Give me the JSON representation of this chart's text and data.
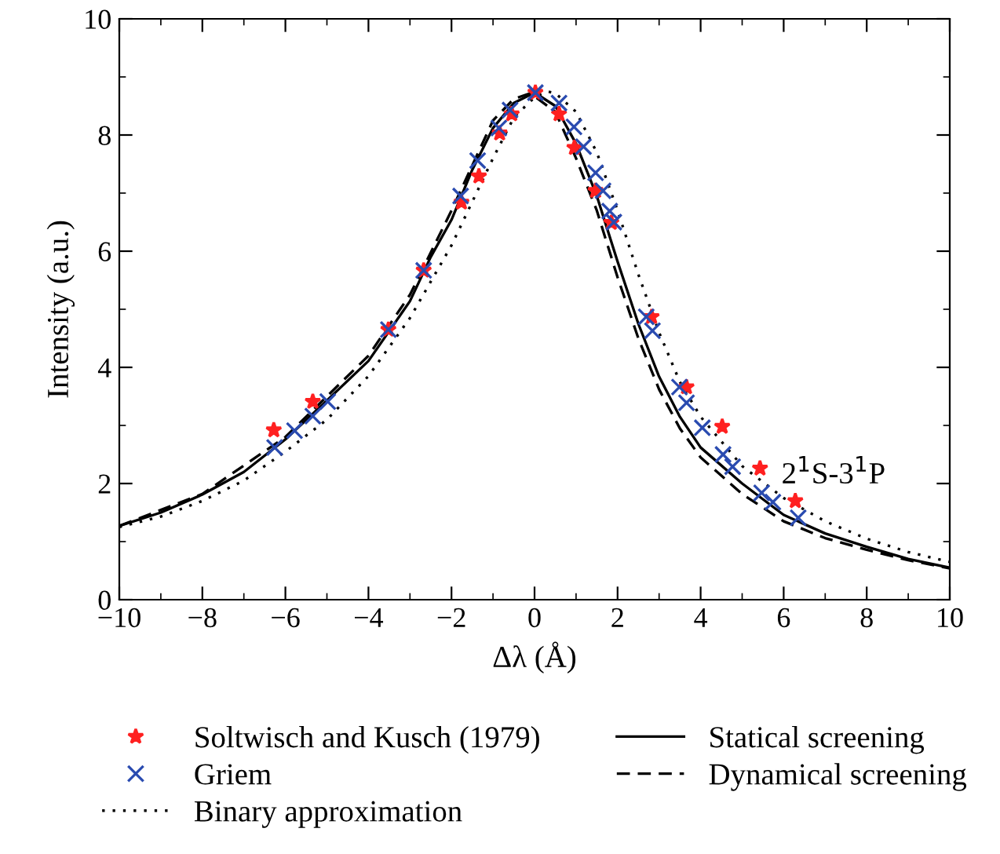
{
  "chart_data": {
    "type": "line",
    "xlabel": "Δλ (Å)",
    "ylabel": "Intensity (a.u.)",
    "xlim": [
      -10,
      10
    ],
    "ylim": [
      0,
      10
    ],
    "xticks": [
      {
        "value": -10,
        "label": "−10"
      },
      {
        "value": -8,
        "label": "−8"
      },
      {
        "value": -6,
        "label": "−6"
      },
      {
        "value": -4,
        "label": "−4"
      },
      {
        "value": -2,
        "label": "−2"
      },
      0,
      2,
      4,
      6,
      8,
      10
    ],
    "yticks": [
      0,
      2,
      4,
      6,
      8,
      10
    ],
    "grid": false,
    "legend": "bottom",
    "annotations": [
      "2$^{1}$S-3$^{1}$P"
    ],
    "series": [
      {
        "name": "Soltwisch and Kusch (1979)",
        "type": "scatter",
        "marker": "star",
        "color": "#ff2020",
        "x": [
          -6.28,
          -5.34,
          -3.52,
          -2.67,
          -1.76,
          -1.34,
          -0.84,
          -0.55,
          0.02,
          0.59,
          0.96,
          1.47,
          1.85,
          2.82,
          3.66,
          4.52,
          5.43,
          6.28
        ],
        "values": [
          2.92,
          3.41,
          4.65,
          5.67,
          6.84,
          7.29,
          8.03,
          8.36,
          8.73,
          8.36,
          7.78,
          7.04,
          6.49,
          4.87,
          3.66,
          2.98,
          2.26,
          1.7
        ]
      },
      {
        "name": "Griem",
        "type": "scatter",
        "marker": "cross",
        "color": "#2a4bb0",
        "x": [
          -6.26,
          -5.78,
          -5.34,
          -4.98,
          -3.52,
          -2.67,
          -1.78,
          -1.37,
          -0.86,
          -0.59,
          0.02,
          0.59,
          0.95,
          1.18,
          1.47,
          1.65,
          1.81,
          1.91,
          2.69,
          2.84,
          3.49,
          3.66,
          4.04,
          4.54,
          4.77,
          5.47,
          5.74,
          6.35
        ],
        "values": [
          2.62,
          2.91,
          3.16,
          3.41,
          4.65,
          5.67,
          6.95,
          7.56,
          8.12,
          8.43,
          8.73,
          8.55,
          8.14,
          7.8,
          7.35,
          7.04,
          6.69,
          6.5,
          4.87,
          4.63,
          3.66,
          3.39,
          2.96,
          2.5,
          2.29,
          1.84,
          1.68,
          1.41
        ]
      },
      {
        "name": "Binary approximation",
        "line_style": "dotted",
        "color": "#000000",
        "x": [
          -10,
          -9,
          -8,
          -7,
          -6,
          -5,
          -4,
          -3,
          -2,
          -1,
          -0.5,
          0,
          0.3,
          0.5,
          1,
          1.5,
          2,
          2.5,
          3,
          3.5,
          4,
          5,
          6,
          7,
          8,
          9,
          10
        ],
        "values": [
          1.25,
          1.43,
          1.7,
          2.05,
          2.55,
          3.1,
          3.85,
          4.85,
          6.1,
          7.6,
          8.3,
          8.65,
          8.75,
          8.72,
          8.4,
          7.7,
          6.7,
          5.6,
          4.6,
          3.75,
          3.15,
          2.3,
          1.75,
          1.35,
          1.05,
          0.82,
          0.65
        ]
      },
      {
        "name": "Statical screening",
        "line_style": "solid",
        "color": "#000000",
        "x": [
          -10,
          -9,
          -8,
          -7,
          -6,
          -5,
          -4,
          -3,
          -2.5,
          -2,
          -1.5,
          -1,
          -0.5,
          0,
          0.5,
          1,
          1.5,
          2,
          2.5,
          3,
          3.5,
          4,
          5,
          6,
          7,
          8,
          9,
          10
        ],
        "values": [
          1.27,
          1.5,
          1.81,
          2.2,
          2.76,
          3.43,
          4.11,
          5.14,
          5.9,
          6.54,
          7.4,
          8.12,
          8.55,
          8.73,
          8.5,
          7.85,
          6.95,
          5.82,
          4.75,
          3.84,
          3.15,
          2.62,
          2.0,
          1.46,
          1.14,
          0.91,
          0.7,
          0.55
        ]
      },
      {
        "name": "Dynamical screening",
        "line_style": "dashed",
        "color": "#000000",
        "x": [
          -10,
          -8,
          -6,
          -4,
          -3,
          -2,
          -1,
          -0.5,
          -0.1,
          0.5,
          1,
          1.5,
          2,
          2.5,
          3,
          3.5,
          4,
          5,
          6,
          7,
          8,
          9,
          10
        ],
        "values": [
          1.27,
          1.82,
          2.8,
          4.2,
          5.25,
          6.7,
          8.25,
          8.62,
          8.72,
          8.4,
          7.6,
          6.7,
          5.55,
          4.5,
          3.62,
          2.95,
          2.45,
          1.82,
          1.35,
          1.06,
          0.86,
          0.68,
          0.54
        ]
      }
    ]
  }
}
